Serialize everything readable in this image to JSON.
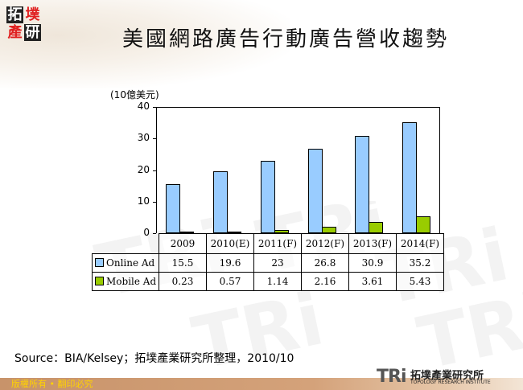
{
  "header": {
    "logo_chars": [
      "拓",
      "墣",
      "產",
      "研"
    ],
    "title": "美國網路廣告行動廣告營收趨勢"
  },
  "chart_data": {
    "type": "bar",
    "title": "美國網路廣告行動廣告營收趨勢",
    "ylabel": "(10億美元)",
    "xlabel": "",
    "ylim": [
      0,
      40
    ],
    "yticks": [
      "40",
      "30",
      "20",
      "10",
      "0"
    ],
    "categories": [
      "2009",
      "2010(E)",
      "2011(F)",
      "2012(F)",
      "2013(F)",
      "2014(F)"
    ],
    "series": [
      {
        "name": "Online Ad",
        "color": "#99ccff",
        "values": [
          15.5,
          19.6,
          23,
          26.8,
          30.9,
          35.2
        ],
        "labels": [
          "15.5",
          "19.6",
          "23",
          "26.8",
          "30.9",
          "35.2"
        ]
      },
      {
        "name": "Mobile Ad",
        "color": "#99cc00",
        "values": [
          0.23,
          0.57,
          1.14,
          2.16,
          3.61,
          5.43
        ],
        "labels": [
          "0.23",
          "0.57",
          "1.14",
          "2.16",
          "3.61",
          "5.43"
        ]
      }
    ],
    "grid": false,
    "legend_position": "data-table"
  },
  "source": "Source：BIA/Kelsey；拓墣產業研究所整理，2010/10",
  "footer": {
    "copyright": "版權所有 • 翻印必究",
    "brand_logo": "TRi",
    "brand_cn": "拓墣產業研究所",
    "brand_en": "TOPOLOGY RESEARCH INSTITUTE"
  }
}
